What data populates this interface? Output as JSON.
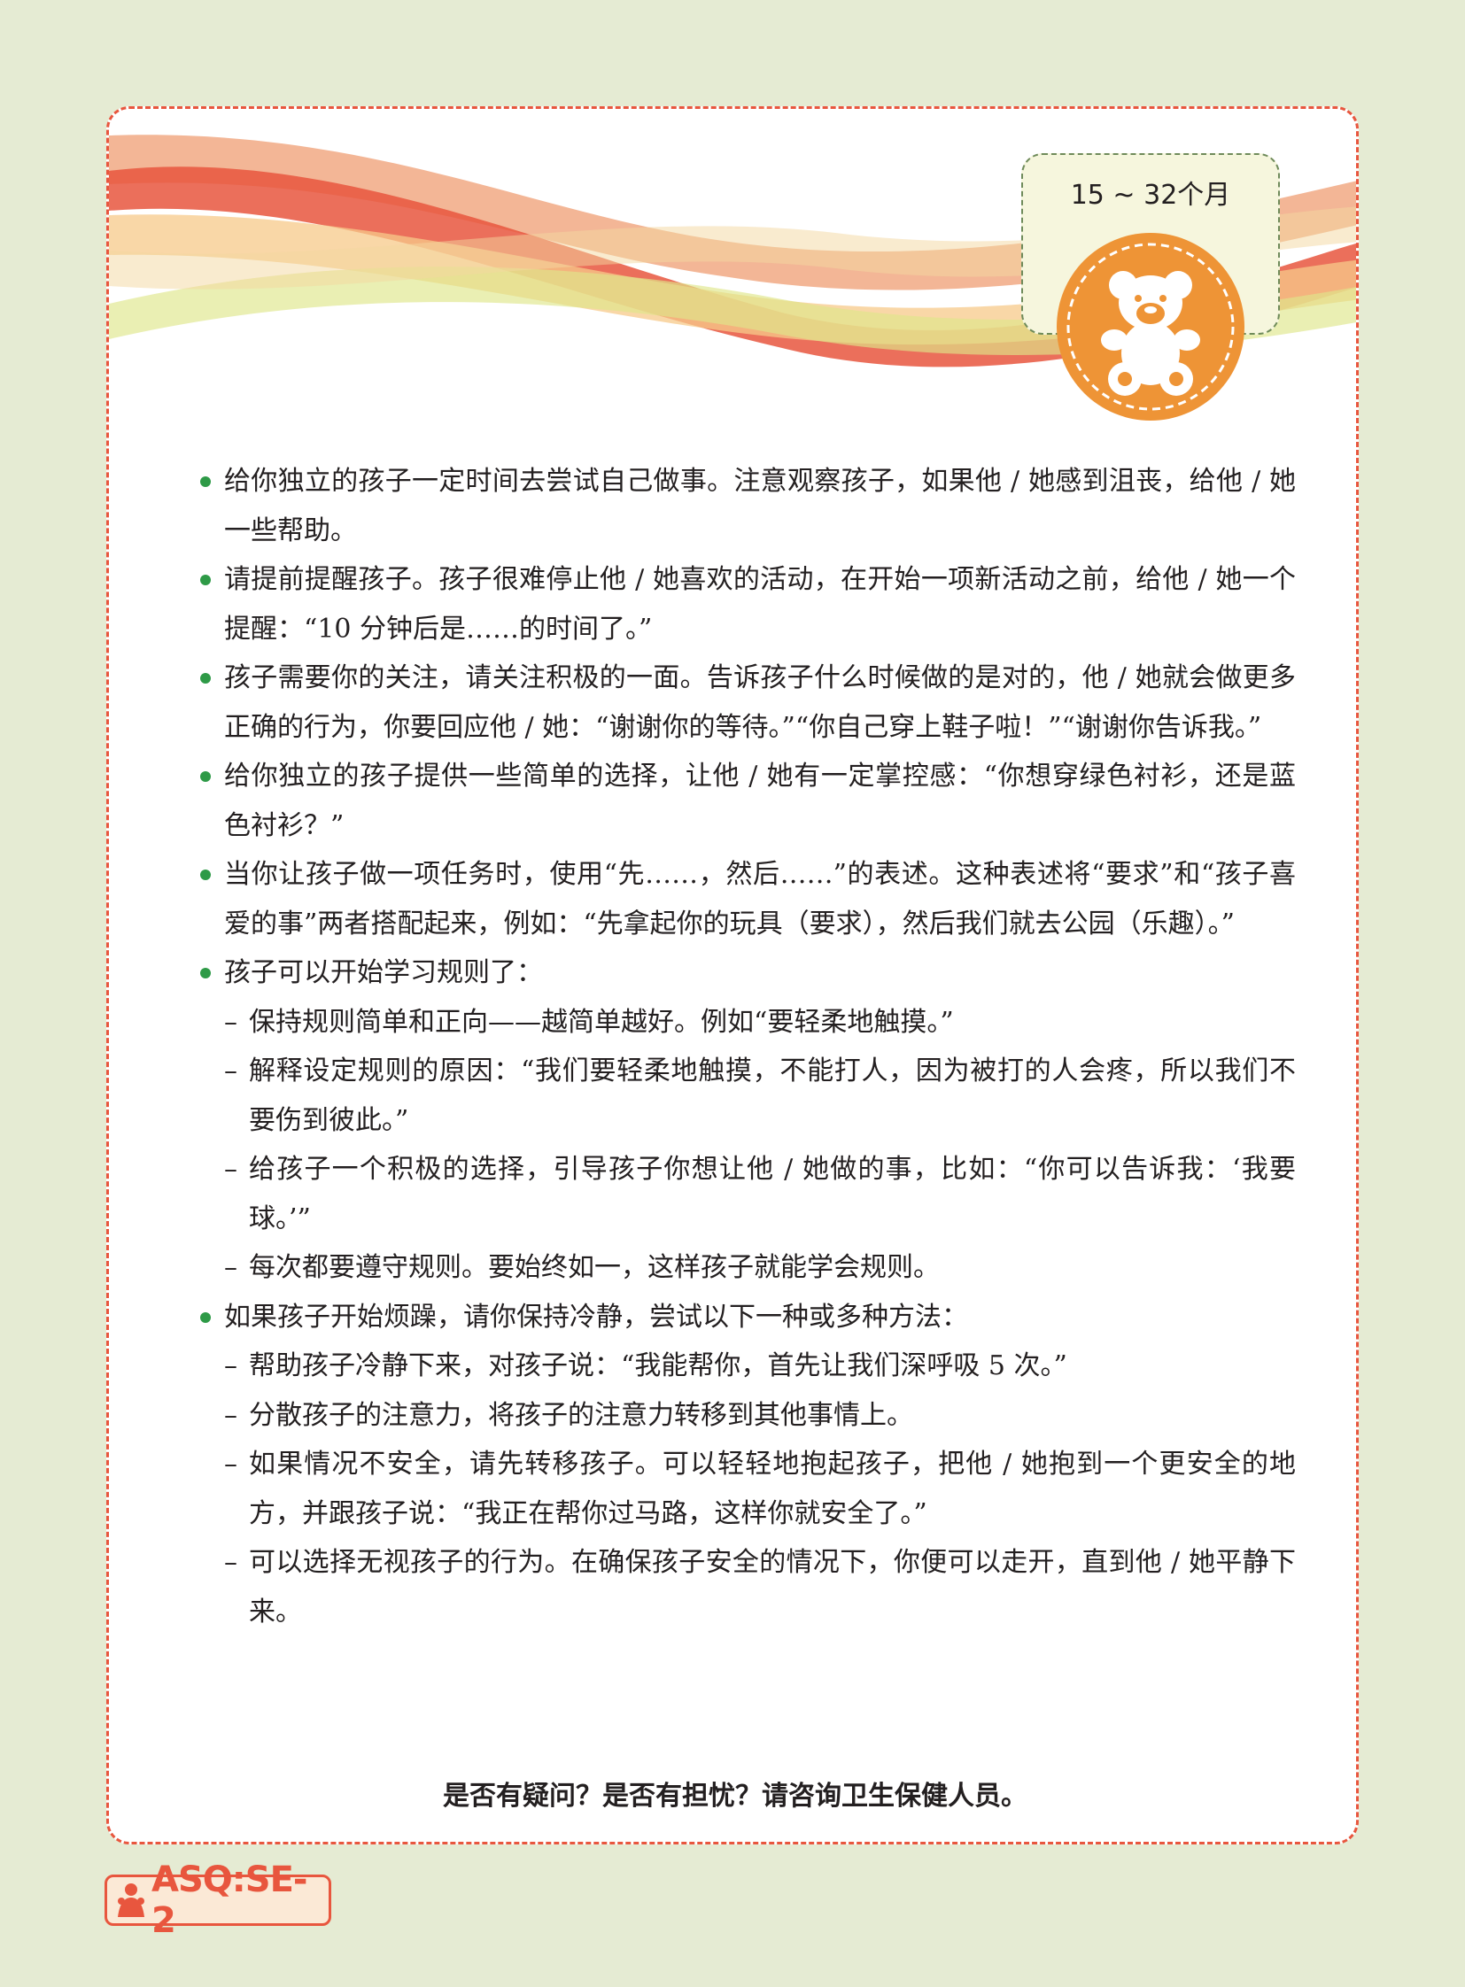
{
  "age_range": "15 ~ 32个月",
  "icons": {
    "badge": "teddy-bear-icon",
    "logo": "child-figure-icon"
  },
  "colors": {
    "bullet": "#2e9a47",
    "accent": "#e8563e",
    "badge": "#ee9436",
    "background": "#e5ebd3"
  },
  "tips": [
    {
      "text": "给你独立的孩子一定时间去尝试自己做事。注意观察孩子，如果他 / 她感到沮丧，给他 / 她一些帮助。"
    },
    {
      "text": "请提前提醒孩子。孩子很难停止他 / 她喜欢的活动，在开始一项新活动之前，给他 / 她一个提醒：“10 分钟后是……的时间了。”"
    },
    {
      "text": "孩子需要你的关注，请关注积极的一面。告诉孩子什么时候做的是对的，他 / 她就会做更多正确的行为，你要回应他 / 她：“谢谢你的等待。”“你自己穿上鞋子啦！”“谢谢你告诉我。”"
    },
    {
      "text": "给你独立的孩子提供一些简单的选择，让他 / 她有一定掌控感：“你想穿绿色衬衫，还是蓝色衬衫？”"
    },
    {
      "text": "当你让孩子做一项任务时，使用“先……，然后……”的表述。这种表述将“要求”和“孩子喜爱的事”两者搭配起来，例如：“先拿起你的玩具（要求），然后我们就去公园（乐趣）。”"
    },
    {
      "text": "孩子可以开始学习规则了：",
      "sub": [
        "保持规则简单和正向——越简单越好。例如“要轻柔地触摸。”",
        "解释设定规则的原因：“我们要轻柔地触摸，不能打人，因为被打的人会疼，所以我们不要伤到彼此。”",
        "给孩子一个积极的选择，引导孩子你想让他 / 她做的事，比如：“你可以告诉我：‘我要球。’”",
        "每次都要遵守规则。要始终如一，这样孩子就能学会规则。"
      ]
    },
    {
      "text": "如果孩子开始烦躁，请你保持冷静，尝试以下一种或多种方法：",
      "sub": [
        "帮助孩子冷静下来，对孩子说：“我能帮你，首先让我们深呼吸 5 次。”",
        "分散孩子的注意力，将孩子的注意力转移到其他事情上。",
        "如果情况不安全，请先转移孩子。可以轻轻地抱起孩子，把他 / 她抱到一个更安全的地方，并跟孩子说：“我正在帮你过马路，这样你就安全了。”",
        "可以选择无视孩子的行为。在确保孩子安全的情况下，你便可以走开，直到他 / 她平静下来。"
      ]
    }
  ],
  "sub_marker": "–",
  "footer_question": "是否有疑问？是否有担忧？请咨询卫生保健人员。",
  "logo_text": "ASQ:SE-2"
}
